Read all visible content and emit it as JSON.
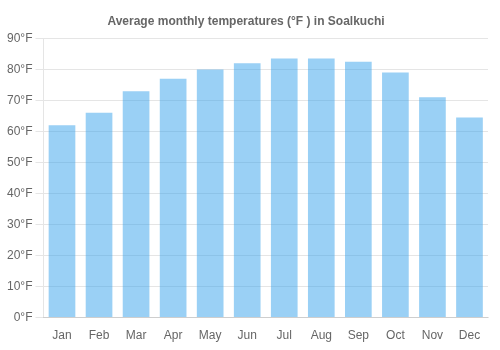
{
  "chart_data": {
    "type": "bar",
    "title": "Average monthly temperatures (°F ) in Soalkuchi",
    "categories": [
      "Jan",
      "Feb",
      "Mar",
      "Apr",
      "May",
      "Jun",
      "Jul",
      "Aug",
      "Sep",
      "Oct",
      "Nov",
      "Dec"
    ],
    "values": [
      62,
      66,
      73,
      77,
      80,
      82,
      83.5,
      83.5,
      82.5,
      79,
      71,
      64.5
    ],
    "ylim": [
      0,
      90
    ],
    "yticks": [
      {
        "value": 0,
        "label": "0°F"
      },
      {
        "value": 10,
        "label": "10°F"
      },
      {
        "value": 20,
        "label": "20°F"
      },
      {
        "value": 30,
        "label": "30°F"
      },
      {
        "value": 40,
        "label": "40°F"
      },
      {
        "value": 50,
        "label": "50°F"
      },
      {
        "value": 60,
        "label": "60°F"
      },
      {
        "value": 70,
        "label": "70°F"
      },
      {
        "value": 80,
        "label": "80°F"
      },
      {
        "value": 90,
        "label": "90°F"
      }
    ],
    "grid": true
  }
}
